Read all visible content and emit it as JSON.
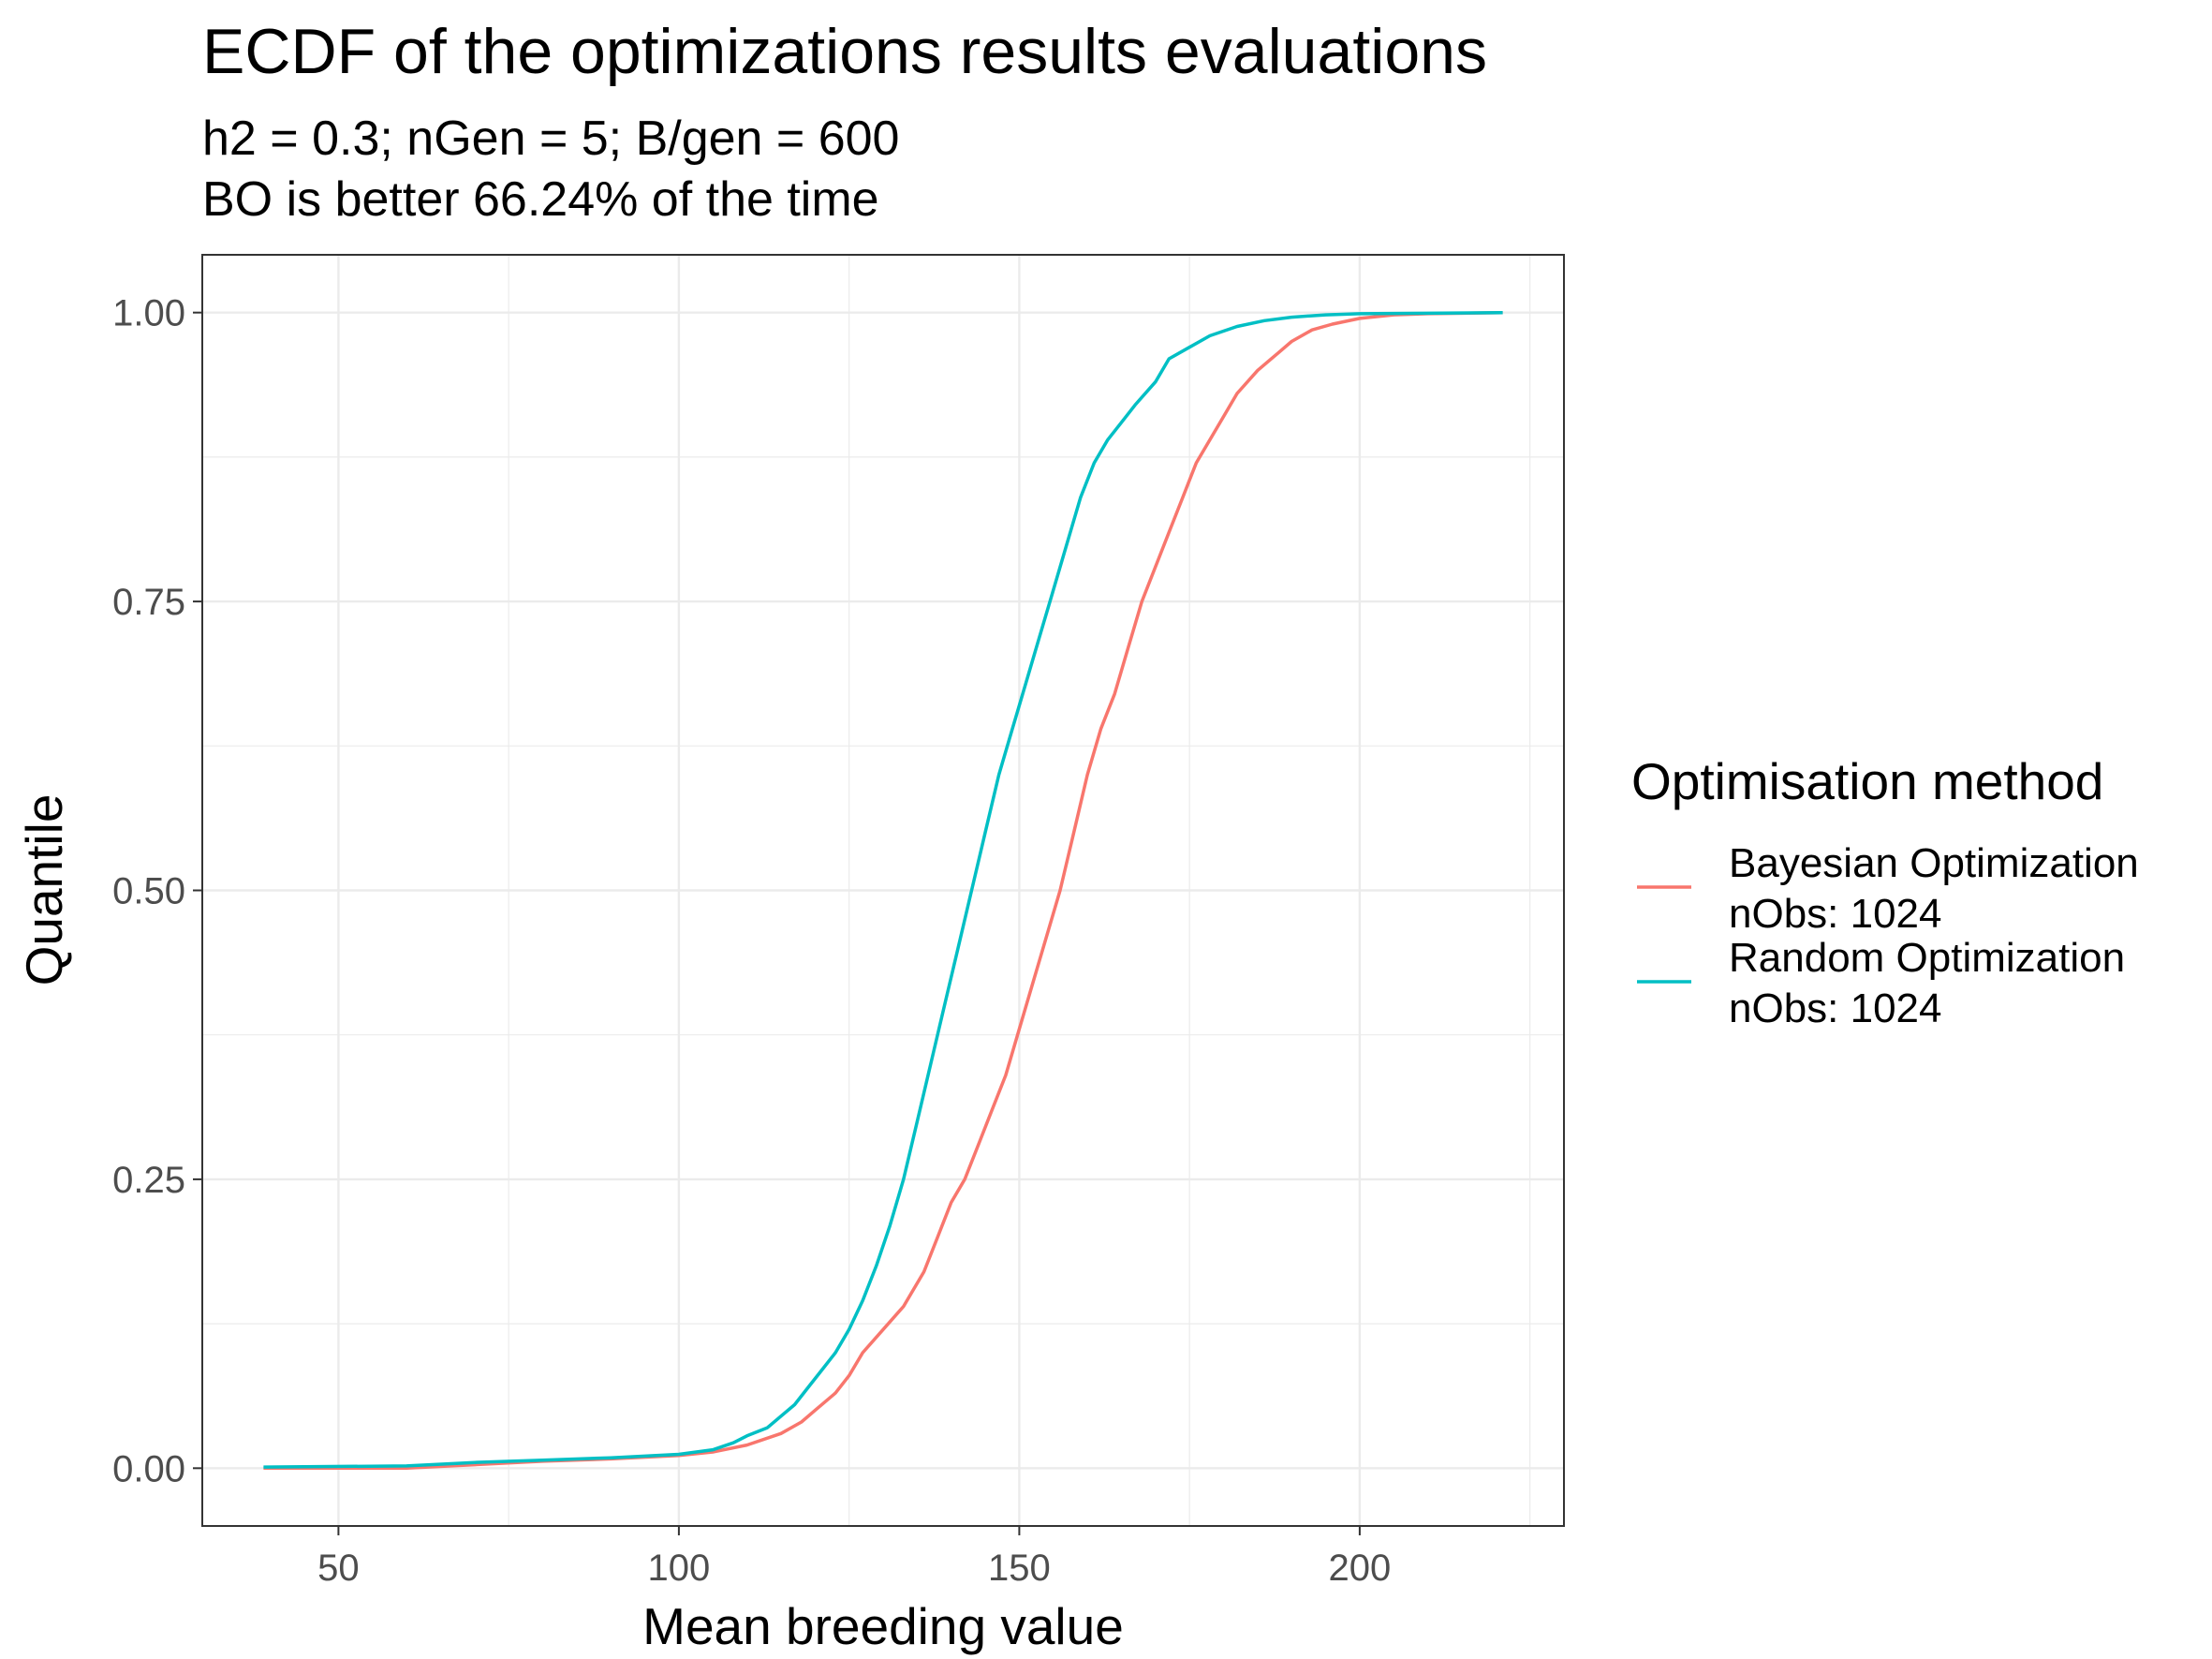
{
  "chart_data": {
    "type": "line",
    "title": "ECDF of the optimizations results evaluations",
    "subtitle_lines": [
      "h2 = 0.3; nGen = 5; B/gen = 600",
      "BO is better 66.24% of the time"
    ],
    "xlabel": "Mean breeding value",
    "ylabel": "Quantile",
    "xlim": [
      30,
      230
    ],
    "ylim": [
      -0.05,
      1.05
    ],
    "x_ticks": [
      50,
      100,
      150,
      200
    ],
    "x_tick_labels": [
      "50",
      "100",
      "150",
      "200"
    ],
    "y_ticks": [
      0,
      0.25,
      0.5,
      0.75,
      1
    ],
    "y_tick_labels": [
      "0.00",
      "0.25",
      "0.50",
      "0.75",
      "1.00"
    ],
    "grid": true,
    "legend": {
      "title": "Optimisation method",
      "position": "right"
    },
    "series": [
      {
        "name": "Bayesian Optimization",
        "name_line2": "nObs: 1024",
        "color": "#F8766D",
        "points": [
          [
            39,
            0.0
          ],
          [
            60,
            0.0
          ],
          [
            70,
            0.003
          ],
          [
            80,
            0.006
          ],
          [
            90,
            0.008
          ],
          [
            100,
            0.011
          ],
          [
            105,
            0.014
          ],
          [
            110,
            0.02
          ],
          [
            115,
            0.03
          ],
          [
            118,
            0.04
          ],
          [
            120,
            0.05
          ],
          [
            123,
            0.065
          ],
          [
            125,
            0.08
          ],
          [
            127,
            0.1
          ],
          [
            130,
            0.12
          ],
          [
            133,
            0.14
          ],
          [
            136,
            0.17
          ],
          [
            138,
            0.2
          ],
          [
            140,
            0.23
          ],
          [
            142,
            0.25
          ],
          [
            144,
            0.28
          ],
          [
            146,
            0.31
          ],
          [
            148,
            0.34
          ],
          [
            150,
            0.38
          ],
          [
            152,
            0.42
          ],
          [
            154,
            0.46
          ],
          [
            156,
            0.5
          ],
          [
            158,
            0.55
          ],
          [
            160,
            0.6
          ],
          [
            162,
            0.64
          ],
          [
            164,
            0.67
          ],
          [
            166,
            0.71
          ],
          [
            168,
            0.75
          ],
          [
            170,
            0.78
          ],
          [
            172,
            0.81
          ],
          [
            174,
            0.84
          ],
          [
            176,
            0.87
          ],
          [
            178,
            0.89
          ],
          [
            180,
            0.91
          ],
          [
            182,
            0.93
          ],
          [
            185,
            0.95
          ],
          [
            188,
            0.965
          ],
          [
            190,
            0.975
          ],
          [
            193,
            0.985
          ],
          [
            196,
            0.99
          ],
          [
            200,
            0.995
          ],
          [
            205,
            0.998
          ],
          [
            210,
            0.999
          ],
          [
            221,
            1.0
          ]
        ]
      },
      {
        "name": "Random Optimization",
        "name_line2": "nObs: 1024",
        "color": "#00BFC4",
        "points": [
          [
            39,
            0.001
          ],
          [
            60,
            0.002
          ],
          [
            70,
            0.005
          ],
          [
            80,
            0.007
          ],
          [
            90,
            0.009
          ],
          [
            100,
            0.012
          ],
          [
            105,
            0.016
          ],
          [
            108,
            0.022
          ],
          [
            110,
            0.028
          ],
          [
            113,
            0.035
          ],
          [
            115,
            0.045
          ],
          [
            117,
            0.055
          ],
          [
            119,
            0.07
          ],
          [
            121,
            0.085
          ],
          [
            123,
            0.1
          ],
          [
            125,
            0.12
          ],
          [
            127,
            0.145
          ],
          [
            129,
            0.175
          ],
          [
            131,
            0.21
          ],
          [
            133,
            0.25
          ],
          [
            135,
            0.3
          ],
          [
            137,
            0.35
          ],
          [
            139,
            0.4
          ],
          [
            141,
            0.45
          ],
          [
            143,
            0.5
          ],
          [
            145,
            0.55
          ],
          [
            147,
            0.6
          ],
          [
            149,
            0.64
          ],
          [
            151,
            0.68
          ],
          [
            153,
            0.72
          ],
          [
            155,
            0.76
          ],
          [
            157,
            0.8
          ],
          [
            159,
            0.84
          ],
          [
            161,
            0.87
          ],
          [
            163,
            0.89
          ],
          [
            165,
            0.905
          ],
          [
            167,
            0.92
          ],
          [
            170,
            0.94
          ],
          [
            172,
            0.96
          ],
          [
            175,
            0.97
          ],
          [
            178,
            0.98
          ],
          [
            182,
            0.988
          ],
          [
            186,
            0.993
          ],
          [
            190,
            0.996
          ],
          [
            195,
            0.998
          ],
          [
            200,
            0.999
          ],
          [
            221,
            1.0
          ]
        ]
      }
    ]
  }
}
